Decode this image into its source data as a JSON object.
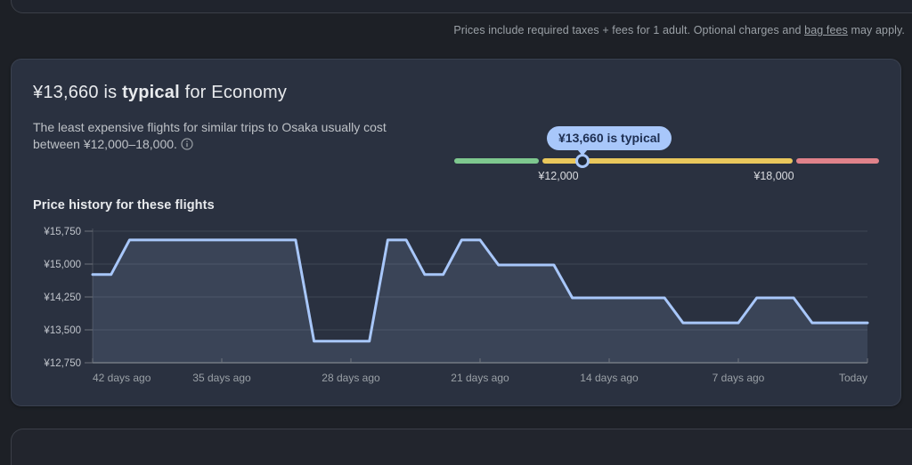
{
  "disclaimer": {
    "text_before_link": "Prices include required taxes + fees for 1 adult. Optional charges and ",
    "link_text": "bag fees",
    "text_after_link": " may apply."
  },
  "price_insights": {
    "headline_prefix": "¥13,660 is ",
    "headline_emphasis": "typical",
    "headline_suffix": " for Economy",
    "description": "The least expensive flights for similar trips to Osaka usually cost between ¥12,000–18,000.",
    "slider": {
      "tooltip_label": "¥13,660 is typical",
      "typical_low_label": "¥12,000",
      "typical_high_label": "¥18,000",
      "colors": {
        "low_segment": "#7ec88f",
        "typical_segment": "#e9c75c",
        "high_segment": "#e0828a",
        "knob_ring": "#a8c7fa",
        "knob_center": "#1e2736",
        "tooltip_bg": "#a8c7fa",
        "tooltip_text": "#1e2f52"
      }
    }
  },
  "chart_data": {
    "type": "area",
    "title": "Price history for these flights",
    "x_axis": {
      "unit": "days ago",
      "ticks_days_ago": [
        42,
        35,
        28,
        21,
        14,
        7,
        0
      ],
      "tick_labels": [
        "42 days ago",
        "35 days ago",
        "28 days ago",
        "21 days ago",
        "14 days ago",
        "7 days ago",
        "Today"
      ]
    },
    "y_axis": {
      "ticks": [
        15750,
        15000,
        14250,
        13500,
        12750
      ],
      "tick_labels": [
        "¥15,750",
        "¥15,000",
        "¥14,250",
        "¥13,500",
        "¥12,750"
      ],
      "range": [
        12750,
        15880
      ]
    },
    "series": [
      {
        "name": "price",
        "points_days_ago_price": [
          [
            42,
            14760
          ],
          [
            41,
            14760
          ],
          [
            40,
            15550
          ],
          [
            31,
            15550
          ],
          [
            30,
            13240
          ],
          [
            27,
            13240
          ],
          [
            26,
            15550
          ],
          [
            25,
            15550
          ],
          [
            24,
            14760
          ],
          [
            23,
            14760
          ],
          [
            22,
            15550
          ],
          [
            21,
            15550
          ],
          [
            20,
            14980
          ],
          [
            17,
            14980
          ],
          [
            16,
            14230
          ],
          [
            11,
            14230
          ],
          [
            10,
            13660
          ],
          [
            7,
            13660
          ],
          [
            6,
            14230
          ],
          [
            4,
            14230
          ],
          [
            3,
            13660
          ],
          [
            0,
            13660
          ]
        ]
      }
    ],
    "line_color": "#a8c7fa",
    "fill_color": "rgba(168,199,250,0.13)",
    "grid": true,
    "legend": false
  }
}
